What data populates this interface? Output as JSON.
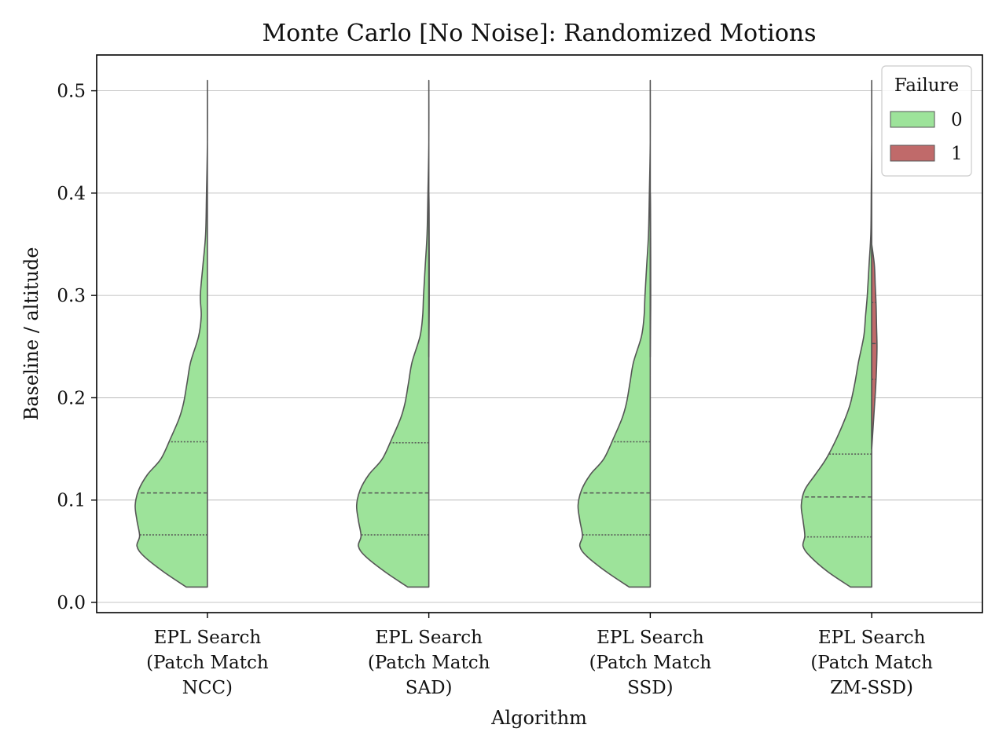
{
  "chart_data": {
    "type": "violin",
    "title": "Monte Carlo [No Noise]: Randomized Motions",
    "xlabel": "Algorithm",
    "ylabel": "Baseline / altitude",
    "ylim": [
      -0.01,
      0.535
    ],
    "yticks": [
      0.0,
      0.1,
      0.2,
      0.3,
      0.4,
      0.5
    ],
    "ytick_labels": [
      "0.0",
      "0.1",
      "0.2",
      "0.3",
      "0.4",
      "0.5"
    ],
    "grid": "horizontal",
    "split": true,
    "categories": [
      [
        "EPL Search",
        "(Patch Match",
        "NCC)"
      ],
      [
        "EPL Search",
        "(Patch Match",
        "SAD)"
      ],
      [
        "EPL Search",
        "(Patch Match",
        "SSD)"
      ],
      [
        "EPL Search",
        "(Patch Match",
        "ZM-SSD)"
      ]
    ],
    "legend": {
      "title": "Failure",
      "placement": "top-right",
      "entries": [
        {
          "label": "0",
          "color": "#9de39a"
        },
        {
          "label": "1",
          "color": "#c06a6a"
        }
      ]
    },
    "colors": {
      "failure_0": "#9de39a",
      "failure_1": "#c06a6a",
      "outline": "#555555"
    },
    "violins": [
      {
        "category_index": 0,
        "failure_0": {
          "quartiles": [
            0.066,
            0.107,
            0.157
          ],
          "density": [
            [
              0.015,
              0.24
            ],
            [
              0.03,
              0.5
            ],
            [
              0.045,
              0.72
            ],
            [
              0.055,
              0.8
            ],
            [
              0.065,
              0.77
            ],
            [
              0.08,
              0.8
            ],
            [
              0.095,
              0.82
            ],
            [
              0.11,
              0.78
            ],
            [
              0.125,
              0.68
            ],
            [
              0.14,
              0.53
            ],
            [
              0.16,
              0.42
            ],
            [
              0.18,
              0.32
            ],
            [
              0.195,
              0.27
            ],
            [
              0.215,
              0.23
            ],
            [
              0.235,
              0.19
            ],
            [
              0.26,
              0.1
            ],
            [
              0.28,
              0.07
            ],
            [
              0.3,
              0.08
            ],
            [
              0.33,
              0.05
            ],
            [
              0.36,
              0.02
            ],
            [
              0.4,
              0.01
            ],
            [
              0.45,
              0.0
            ],
            [
              0.51,
              0.0
            ]
          ]
        },
        "failure_1": null
      },
      {
        "category_index": 1,
        "failure_0": {
          "quartiles": [
            0.066,
            0.107,
            0.156
          ],
          "density": [
            [
              0.015,
              0.24
            ],
            [
              0.03,
              0.5
            ],
            [
              0.045,
              0.72
            ],
            [
              0.055,
              0.8
            ],
            [
              0.065,
              0.77
            ],
            [
              0.08,
              0.8
            ],
            [
              0.095,
              0.82
            ],
            [
              0.11,
              0.78
            ],
            [
              0.125,
              0.68
            ],
            [
              0.14,
              0.53
            ],
            [
              0.16,
              0.42
            ],
            [
              0.18,
              0.32
            ],
            [
              0.195,
              0.27
            ],
            [
              0.215,
              0.23
            ],
            [
              0.235,
              0.19
            ],
            [
              0.26,
              0.1
            ],
            [
              0.28,
              0.07
            ],
            [
              0.3,
              0.06
            ],
            [
              0.33,
              0.04
            ],
            [
              0.36,
              0.02
            ],
            [
              0.4,
              0.01
            ],
            [
              0.45,
              0.0
            ],
            [
              0.51,
              0.0
            ]
          ]
        },
        "failure_1": {
          "quartiles": [],
          "density": [
            [
              0.24,
              0.0
            ],
            [
              0.3,
              0.005
            ],
            [
              0.38,
              0.003
            ],
            [
              0.4,
              0.0
            ]
          ]
        }
      },
      {
        "category_index": 2,
        "failure_0": {
          "quartiles": [
            0.066,
            0.107,
            0.157
          ],
          "density": [
            [
              0.015,
              0.24
            ],
            [
              0.03,
              0.5
            ],
            [
              0.045,
              0.72
            ],
            [
              0.055,
              0.8
            ],
            [
              0.065,
              0.77
            ],
            [
              0.08,
              0.8
            ],
            [
              0.095,
              0.82
            ],
            [
              0.11,
              0.78
            ],
            [
              0.125,
              0.68
            ],
            [
              0.14,
              0.53
            ],
            [
              0.16,
              0.42
            ],
            [
              0.18,
              0.32
            ],
            [
              0.195,
              0.27
            ],
            [
              0.215,
              0.23
            ],
            [
              0.235,
              0.19
            ],
            [
              0.26,
              0.1
            ],
            [
              0.28,
              0.07
            ],
            [
              0.3,
              0.06
            ],
            [
              0.33,
              0.04
            ],
            [
              0.36,
              0.02
            ],
            [
              0.4,
              0.01
            ],
            [
              0.45,
              0.0
            ],
            [
              0.51,
              0.0
            ]
          ]
        },
        "failure_1": {
          "quartiles": [],
          "density": [
            [
              0.24,
              0.0
            ],
            [
              0.3,
              0.005
            ],
            [
              0.38,
              0.003
            ],
            [
              0.4,
              0.0
            ]
          ]
        }
      },
      {
        "category_index": 3,
        "failure_0": {
          "quartiles": [
            0.064,
            0.103,
            0.145
          ],
          "density": [
            [
              0.015,
              0.24
            ],
            [
              0.03,
              0.5
            ],
            [
              0.045,
              0.7
            ],
            [
              0.055,
              0.78
            ],
            [
              0.065,
              0.76
            ],
            [
              0.08,
              0.78
            ],
            [
              0.095,
              0.8
            ],
            [
              0.11,
              0.76
            ],
            [
              0.125,
              0.64
            ],
            [
              0.14,
              0.52
            ],
            [
              0.16,
              0.4
            ],
            [
              0.18,
              0.3
            ],
            [
              0.195,
              0.24
            ],
            [
              0.215,
              0.19
            ],
            [
              0.235,
              0.15
            ],
            [
              0.26,
              0.09
            ],
            [
              0.28,
              0.07
            ],
            [
              0.3,
              0.05
            ],
            [
              0.33,
              0.03
            ],
            [
              0.36,
              0.01
            ],
            [
              0.4,
              0.005
            ],
            [
              0.45,
              0.0
            ],
            [
              0.51,
              0.0
            ]
          ]
        },
        "failure_1": {
          "quartiles": [
            0.218,
            0.253,
            0.293
          ],
          "density": [
            [
              0.15,
              0.0
            ],
            [
              0.17,
              0.015
            ],
            [
              0.19,
              0.03
            ],
            [
              0.21,
              0.045
            ],
            [
              0.23,
              0.055
            ],
            [
              0.25,
              0.06
            ],
            [
              0.27,
              0.055
            ],
            [
              0.29,
              0.05
            ],
            [
              0.31,
              0.04
            ],
            [
              0.33,
              0.03
            ],
            [
              0.35,
              0.0
            ]
          ]
        }
      }
    ]
  }
}
